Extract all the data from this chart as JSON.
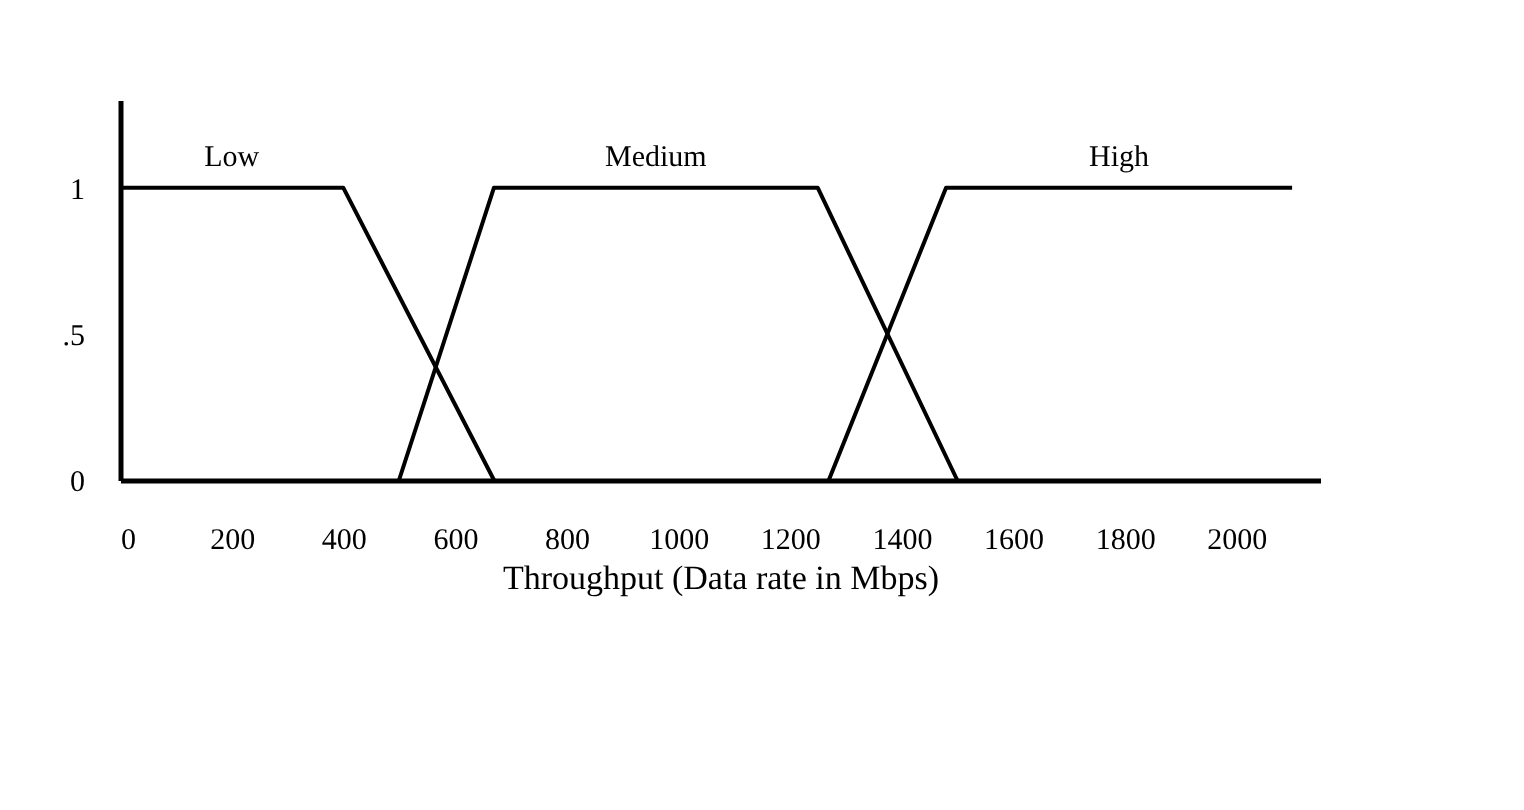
{
  "chart_data": {
    "type": "line",
    "xlabel": "Throughput (Data rate in Mbps)",
    "series": [
      {
        "name": "Low",
        "color": "#000000",
        "x": [
          0,
          400,
          670
        ],
        "values": [
          1,
          1,
          0
        ]
      },
      {
        "name": "Medium",
        "color": "#000000",
        "x": [
          500,
          670,
          1250,
          1500
        ],
        "values": [
          0,
          1,
          1,
          0
        ]
      },
      {
        "name": "High",
        "color": "#000000",
        "x": [
          1270,
          1480,
          2100
        ],
        "values": [
          0,
          1,
          1
        ]
      }
    ],
    "xlim": [
      0,
      2150
    ],
    "xticks": [
      0,
      200,
      400,
      600,
      800,
      1000,
      1200,
      1400,
      1600,
      1800,
      2000
    ],
    "ylim": [
      0,
      1.3
    ],
    "yticks": [
      0,
      {
        "value": 0.5,
        "label": ".5"
      },
      1
    ],
    "grid": false,
    "legend": false,
    "marker": "none",
    "line_style": "solid"
  }
}
